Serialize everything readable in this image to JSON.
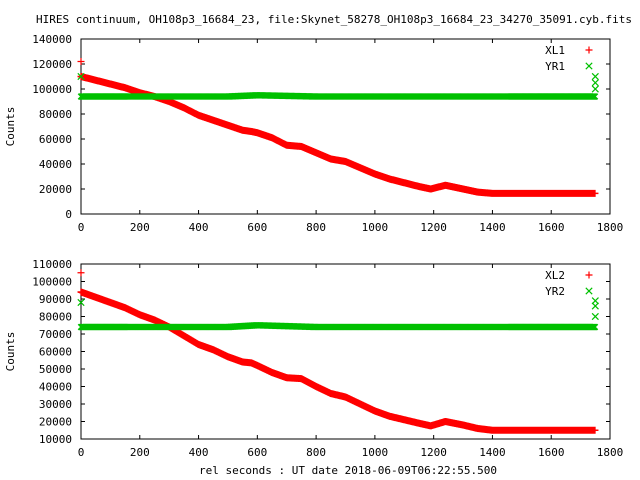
{
  "title": "HIRES continuum, OH108p3_16684_23, file:Skynet_58278_OH108p3_16684_23_34270_35091.cyb.fits",
  "xlabel": "rel seconds : UT date 2018-06-09T06:22:55.500",
  "colors": {
    "red": "#ff0000",
    "green": "#00c000"
  },
  "chart_data": [
    {
      "type": "scatter",
      "ylabel": "Counts",
      "xlim": [
        0,
        1800
      ],
      "ylim": [
        0,
        140000
      ],
      "xticks": [
        0,
        200,
        400,
        600,
        800,
        1000,
        1200,
        1400,
        1600,
        1800
      ],
      "yticks": [
        0,
        20000,
        40000,
        60000,
        80000,
        100000,
        120000,
        140000
      ],
      "legend_position": "top-right",
      "series": [
        {
          "name": "XL1",
          "marker": "+",
          "color": "#ff0000",
          "outliers": [
            [
              0,
              122000
            ]
          ],
          "x": [
            0,
            50,
            100,
            150,
            200,
            250,
            300,
            350,
            400,
            450,
            500,
            550,
            580,
            600,
            650,
            700,
            750,
            800,
            850,
            900,
            950,
            1000,
            1050,
            1100,
            1150,
            1190,
            1240,
            1300,
            1350,
            1400,
            1500,
            1600,
            1750
          ],
          "y": [
            110000,
            107000,
            104000,
            101000,
            97000,
            94000,
            90000,
            85000,
            79000,
            75000,
            71000,
            67000,
            66000,
            65000,
            61000,
            55000,
            54000,
            49000,
            44000,
            42000,
            37000,
            32000,
            28000,
            25000,
            22000,
            20000,
            23000,
            20000,
            17500,
            16500,
            16500,
            16500,
            16500
          ]
        },
        {
          "name": "YR1",
          "marker": "x",
          "color": "#00c000",
          "outliers": [
            [
              0,
              110000
            ],
            [
              1750,
              110000
            ],
            [
              1750,
              105000
            ],
            [
              1750,
              100000
            ]
          ],
          "x": [
            0,
            100,
            200,
            300,
            400,
            500,
            600,
            700,
            800,
            900,
            1000,
            1100,
            1200,
            1300,
            1400,
            1500,
            1600,
            1750
          ],
          "y": [
            94000,
            94000,
            94000,
            94000,
            94000,
            94000,
            95000,
            94500,
            94000,
            94000,
            94000,
            94000,
            94000,
            94000,
            94000,
            94000,
            94000,
            94000
          ]
        }
      ]
    },
    {
      "type": "scatter",
      "ylabel": "Counts",
      "xlim": [
        0,
        1800
      ],
      "ylim": [
        10000,
        110000
      ],
      "xticks": [
        0,
        200,
        400,
        600,
        800,
        1000,
        1200,
        1400,
        1600,
        1800
      ],
      "yticks": [
        10000,
        20000,
        30000,
        40000,
        50000,
        60000,
        70000,
        80000,
        90000,
        100000,
        110000
      ],
      "legend_position": "top-right",
      "series": [
        {
          "name": "XL2",
          "marker": "+",
          "color": "#ff0000",
          "outliers": [
            [
              0,
              105000
            ]
          ],
          "x": [
            0,
            50,
            100,
            150,
            200,
            250,
            300,
            350,
            400,
            450,
            500,
            550,
            580,
            600,
            650,
            700,
            750,
            800,
            850,
            900,
            950,
            1000,
            1050,
            1100,
            1150,
            1190,
            1240,
            1300,
            1350,
            1400,
            1500,
            1600,
            1750
          ],
          "y": [
            94000,
            91000,
            88000,
            85000,
            81000,
            78000,
            74000,
            69000,
            64000,
            61000,
            57000,
            54000,
            53500,
            52000,
            48000,
            45000,
            44500,
            40000,
            36000,
            34000,
            30000,
            26000,
            23000,
            21000,
            19000,
            17500,
            20000,
            18000,
            16000,
            15000,
            15000,
            15000,
            15000
          ]
        },
        {
          "name": "YR2",
          "marker": "x",
          "color": "#00c000",
          "outliers": [
            [
              0,
              88000
            ],
            [
              1750,
              89000
            ],
            [
              1750,
              86000
            ],
            [
              1750,
              80000
            ]
          ],
          "x": [
            0,
            100,
            200,
            300,
            400,
            500,
            600,
            700,
            800,
            900,
            1000,
            1100,
            1200,
            1300,
            1400,
            1500,
            1600,
            1750
          ],
          "y": [
            74000,
            74000,
            74000,
            74000,
            74000,
            74000,
            75000,
            74500,
            74000,
            74000,
            74000,
            74000,
            74000,
            74000,
            74000,
            74000,
            74000,
            74000
          ]
        }
      ]
    }
  ]
}
